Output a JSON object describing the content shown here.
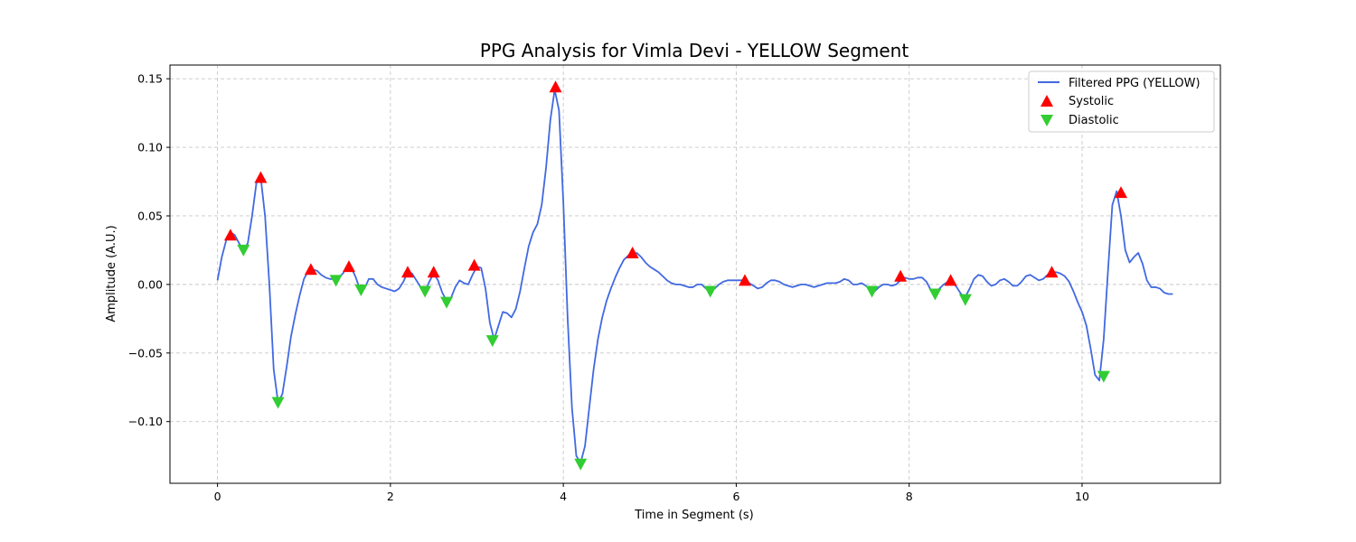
{
  "chart_data": {
    "type": "line",
    "title": "PPG Analysis for Vimla Devi - YELLOW Segment",
    "xlabel": "Time in Segment (s)",
    "ylabel": "Amplitude (A.U.)",
    "xlim": [
      -0.55,
      11.6
    ],
    "ylim": [
      -0.145,
      0.16
    ],
    "xticks": [
      0,
      2,
      4,
      6,
      8,
      10
    ],
    "yticks": [
      -0.1,
      -0.05,
      0.0,
      0.05,
      0.1,
      0.15
    ],
    "xtick_labels": [
      "0",
      "2",
      "4",
      "6",
      "8",
      "10"
    ],
    "ytick_labels": [
      "−0.10",
      "−0.05",
      "0.00",
      "0.05",
      "0.10",
      "0.15"
    ],
    "grid": true,
    "legend_position": "top-right",
    "series": [
      {
        "name": "Filtered PPG (YELLOW)",
        "kind": "line",
        "color": "#4169e1",
        "points": [
          [
            0.0,
            0.003
          ],
          [
            0.05,
            0.02
          ],
          [
            0.1,
            0.032
          ],
          [
            0.15,
            0.038
          ],
          [
            0.2,
            0.036
          ],
          [
            0.25,
            0.03
          ],
          [
            0.3,
            0.025
          ],
          [
            0.35,
            0.03
          ],
          [
            0.4,
            0.05
          ],
          [
            0.45,
            0.074
          ],
          [
            0.5,
            0.078
          ],
          [
            0.55,
            0.05
          ],
          [
            0.6,
            0.0
          ],
          [
            0.65,
            -0.062
          ],
          [
            0.7,
            -0.086
          ],
          [
            0.75,
            -0.08
          ],
          [
            0.8,
            -0.06
          ],
          [
            0.85,
            -0.038
          ],
          [
            0.9,
            -0.022
          ],
          [
            0.95,
            -0.008
          ],
          [
            1.0,
            0.004
          ],
          [
            1.05,
            0.01
          ],
          [
            1.1,
            0.011
          ],
          [
            1.15,
            0.01
          ],
          [
            1.2,
            0.007
          ],
          [
            1.25,
            0.005
          ],
          [
            1.3,
            0.004
          ],
          [
            1.35,
            0.004
          ],
          [
            1.4,
            0.005
          ],
          [
            1.45,
            0.008
          ],
          [
            1.5,
            0.013
          ],
          [
            1.55,
            0.012
          ],
          [
            1.6,
            0.005
          ],
          [
            1.65,
            -0.004
          ],
          [
            1.7,
            -0.003
          ],
          [
            1.75,
            0.004
          ],
          [
            1.8,
            0.004
          ],
          [
            1.85,
            0.0
          ],
          [
            1.9,
            -0.002
          ],
          [
            1.95,
            -0.003
          ],
          [
            2.0,
            -0.004
          ],
          [
            2.05,
            -0.005
          ],
          [
            2.1,
            -0.003
          ],
          [
            2.15,
            0.002
          ],
          [
            2.2,
            0.009
          ],
          [
            2.25,
            0.008
          ],
          [
            2.3,
            0.003
          ],
          [
            2.35,
            -0.002
          ],
          [
            2.4,
            -0.005
          ],
          [
            2.45,
            0.002
          ],
          [
            2.5,
            0.008
          ],
          [
            2.55,
            0.003
          ],
          [
            2.6,
            -0.006
          ],
          [
            2.65,
            -0.012
          ],
          [
            2.7,
            -0.01
          ],
          [
            2.75,
            -0.002
          ],
          [
            2.8,
            0.003
          ],
          [
            2.85,
            0.001
          ],
          [
            2.9,
            0.0
          ],
          [
            2.95,
            0.007
          ],
          [
            3.0,
            0.013
          ],
          [
            3.05,
            0.012
          ],
          [
            3.1,
            -0.003
          ],
          [
            3.15,
            -0.028
          ],
          [
            3.2,
            -0.04
          ],
          [
            3.25,
            -0.03
          ],
          [
            3.3,
            -0.02
          ],
          [
            3.35,
            -0.021
          ],
          [
            3.4,
            -0.024
          ],
          [
            3.45,
            -0.018
          ],
          [
            3.5,
            -0.005
          ],
          [
            3.55,
            0.012
          ],
          [
            3.6,
            0.028
          ],
          [
            3.65,
            0.038
          ],
          [
            3.7,
            0.044
          ],
          [
            3.75,
            0.058
          ],
          [
            3.8,
            0.085
          ],
          [
            3.85,
            0.12
          ],
          [
            3.9,
            0.142
          ],
          [
            3.95,
            0.127
          ],
          [
            4.0,
            0.06
          ],
          [
            4.05,
            -0.025
          ],
          [
            4.1,
            -0.09
          ],
          [
            4.15,
            -0.125
          ],
          [
            4.2,
            -0.13
          ],
          [
            4.25,
            -0.118
          ],
          [
            4.3,
            -0.09
          ],
          [
            4.35,
            -0.062
          ],
          [
            4.4,
            -0.04
          ],
          [
            4.45,
            -0.024
          ],
          [
            4.5,
            -0.012
          ],
          [
            4.55,
            -0.003
          ],
          [
            4.6,
            0.005
          ],
          [
            4.65,
            0.012
          ],
          [
            4.7,
            0.018
          ],
          [
            4.75,
            0.021
          ],
          [
            4.8,
            0.022
          ],
          [
            4.85,
            0.023
          ],
          [
            4.9,
            0.02
          ],
          [
            4.95,
            0.016
          ],
          [
            5.0,
            0.013
          ],
          [
            5.05,
            0.011
          ],
          [
            5.1,
            0.009
          ],
          [
            5.15,
            0.006
          ],
          [
            5.2,
            0.003
          ],
          [
            5.25,
            0.001
          ],
          [
            5.3,
            0.0
          ],
          [
            5.35,
            0.0
          ],
          [
            5.4,
            -0.001
          ],
          [
            5.45,
            -0.002
          ],
          [
            5.5,
            -0.002
          ],
          [
            5.55,
            0.0
          ],
          [
            5.6,
            0.0
          ],
          [
            5.65,
            -0.003
          ],
          [
            5.7,
            -0.005
          ],
          [
            5.75,
            -0.003
          ],
          [
            5.8,
            0.0
          ],
          [
            5.85,
            0.002
          ],
          [
            5.9,
            0.003
          ],
          [
            5.95,
            0.003
          ],
          [
            6.0,
            0.003
          ],
          [
            6.05,
            0.003
          ],
          [
            6.1,
            0.003
          ],
          [
            6.15,
            0.001
          ],
          [
            6.2,
            -0.001
          ],
          [
            6.25,
            -0.003
          ],
          [
            6.3,
            -0.002
          ],
          [
            6.35,
            0.001
          ],
          [
            6.4,
            0.003
          ],
          [
            6.45,
            0.003
          ],
          [
            6.5,
            0.002
          ],
          [
            6.55,
            0.0
          ],
          [
            6.6,
            -0.001
          ],
          [
            6.65,
            -0.002
          ],
          [
            6.7,
            -0.001
          ],
          [
            6.75,
            0.0
          ],
          [
            6.8,
            0.0
          ],
          [
            6.85,
            -0.001
          ],
          [
            6.9,
            -0.002
          ],
          [
            6.95,
            -0.001
          ],
          [
            7.0,
            0.0
          ],
          [
            7.05,
            0.001
          ],
          [
            7.1,
            0.001
          ],
          [
            7.15,
            0.001
          ],
          [
            7.2,
            0.002
          ],
          [
            7.25,
            0.004
          ],
          [
            7.3,
            0.003
          ],
          [
            7.35,
            0.0
          ],
          [
            7.4,
            0.0
          ],
          [
            7.45,
            0.001
          ],
          [
            7.5,
            -0.001
          ],
          [
            7.55,
            -0.004
          ],
          [
            7.6,
            -0.005
          ],
          [
            7.65,
            -0.002
          ],
          [
            7.7,
            0.0
          ],
          [
            7.75,
            0.0
          ],
          [
            7.8,
            -0.001
          ],
          [
            7.85,
            0.0
          ],
          [
            7.9,
            0.003
          ],
          [
            7.95,
            0.005
          ],
          [
            8.0,
            0.004
          ],
          [
            8.05,
            0.004
          ],
          [
            8.1,
            0.005
          ],
          [
            8.15,
            0.005
          ],
          [
            8.2,
            0.002
          ],
          [
            8.25,
            -0.004
          ],
          [
            8.3,
            -0.007
          ],
          [
            8.35,
            -0.003
          ],
          [
            8.4,
            0.0
          ],
          [
            8.45,
            0.002
          ],
          [
            8.5,
            0.002
          ],
          [
            8.55,
            -0.002
          ],
          [
            8.6,
            -0.007
          ],
          [
            8.65,
            -0.009
          ],
          [
            8.7,
            -0.003
          ],
          [
            8.75,
            0.004
          ],
          [
            8.8,
            0.007
          ],
          [
            8.85,
            0.006
          ],
          [
            8.9,
            0.002
          ],
          [
            8.95,
            -0.001
          ],
          [
            9.0,
            0.0
          ],
          [
            9.05,
            0.003
          ],
          [
            9.1,
            0.004
          ],
          [
            9.15,
            0.002
          ],
          [
            9.2,
            -0.001
          ],
          [
            9.25,
            -0.001
          ],
          [
            9.3,
            0.002
          ],
          [
            9.35,
            0.006
          ],
          [
            9.4,
            0.007
          ],
          [
            9.45,
            0.005
          ],
          [
            9.5,
            0.003
          ],
          [
            9.55,
            0.004
          ],
          [
            9.6,
            0.007
          ],
          [
            9.65,
            0.009
          ],
          [
            9.7,
            0.009
          ],
          [
            9.75,
            0.008
          ],
          [
            9.8,
            0.006
          ],
          [
            9.85,
            0.002
          ],
          [
            9.9,
            -0.005
          ],
          [
            9.95,
            -0.013
          ],
          [
            10.0,
            -0.02
          ],
          [
            10.05,
            -0.03
          ],
          [
            10.1,
            -0.047
          ],
          [
            10.15,
            -0.066
          ],
          [
            10.2,
            -0.07
          ],
          [
            10.25,
            -0.04
          ],
          [
            10.3,
            0.01
          ],
          [
            10.35,
            0.058
          ],
          [
            10.4,
            0.068
          ],
          [
            10.45,
            0.05
          ],
          [
            10.5,
            0.025
          ],
          [
            10.55,
            0.016
          ],
          [
            10.6,
            0.02
          ],
          [
            10.65,
            0.023
          ],
          [
            10.7,
            0.015
          ],
          [
            10.75,
            0.003
          ],
          [
            10.8,
            -0.002
          ],
          [
            10.85,
            -0.002
          ],
          [
            10.9,
            -0.003
          ],
          [
            10.95,
            -0.006
          ],
          [
            11.0,
            -0.007
          ],
          [
            11.05,
            -0.007
          ]
        ]
      },
      {
        "name": "Systolic",
        "kind": "markers",
        "marker": "triangle-up",
        "color": "#ff0000",
        "points": [
          [
            0.15,
            0.036
          ],
          [
            0.5,
            0.078
          ],
          [
            1.08,
            0.011
          ],
          [
            1.52,
            0.013
          ],
          [
            2.2,
            0.009
          ],
          [
            2.5,
            0.009
          ],
          [
            2.97,
            0.014
          ],
          [
            3.91,
            0.144
          ],
          [
            4.8,
            0.023
          ],
          [
            6.1,
            0.003
          ],
          [
            7.9,
            0.006
          ],
          [
            8.48,
            0.003
          ],
          [
            9.65,
            0.009
          ],
          [
            10.45,
            0.067
          ]
        ]
      },
      {
        "name": "Diastolic",
        "kind": "markers",
        "marker": "triangle-down",
        "color": "#32cd32",
        "points": [
          [
            0.3,
            0.025
          ],
          [
            0.7,
            -0.086
          ],
          [
            1.37,
            0.003
          ],
          [
            1.66,
            -0.004
          ],
          [
            2.4,
            -0.005
          ],
          [
            2.65,
            -0.013
          ],
          [
            3.18,
            -0.041
          ],
          [
            4.2,
            -0.131
          ],
          [
            5.7,
            -0.005
          ],
          [
            7.57,
            -0.005
          ],
          [
            8.3,
            -0.007
          ],
          [
            8.65,
            -0.011
          ],
          [
            10.25,
            -0.067
          ]
        ]
      }
    ]
  }
}
